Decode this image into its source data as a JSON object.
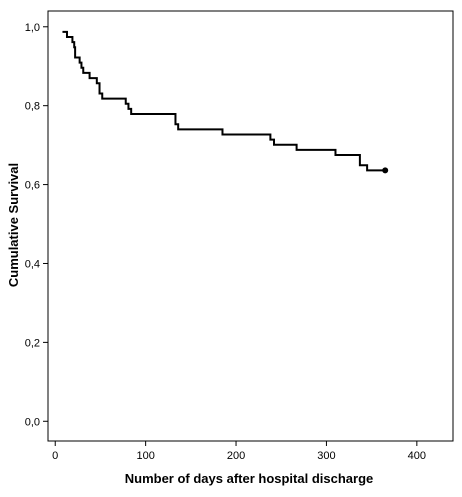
{
  "chart_data": {
    "type": "line",
    "title": "",
    "xlabel": "Number of days after hospital discharge",
    "ylabel": "Cumulative Survival",
    "xlim": [
      -8,
      440
    ],
    "ylim": [
      -0.05,
      1.04
    ],
    "xticks": [
      "0",
      "100",
      "200",
      "300",
      "400"
    ],
    "xtick_values": [
      0,
      100,
      200,
      300,
      400
    ],
    "yticks": [
      "0,0",
      "0,2",
      "0,4",
      "0,6",
      "0,8",
      "1,0"
    ],
    "ytick_values": [
      0.0,
      0.2,
      0.4,
      0.6,
      0.8,
      1.0
    ],
    "grid": false,
    "series": [
      {
        "step": "post",
        "color": "#000000",
        "x": [
          8,
          13,
          19,
          21,
          22,
          27,
          29,
          31,
          38,
          46,
          49,
          52,
          78,
          81,
          84,
          133,
          136,
          140,
          185,
          238,
          242,
          267,
          310,
          337,
          345,
          365
        ],
        "y": [
          0.987,
          0.974,
          0.961,
          0.948,
          0.922,
          0.909,
          0.896,
          0.883,
          0.87,
          0.857,
          0.831,
          0.818,
          0.805,
          0.792,
          0.779,
          0.753,
          0.74,
          0.74,
          0.727,
          0.714,
          0.701,
          0.688,
          0.675,
          0.649,
          0.636,
          0.636
        ],
        "censored_x": [
          365
        ],
        "censored_y": [
          0.636
        ]
      }
    ]
  }
}
